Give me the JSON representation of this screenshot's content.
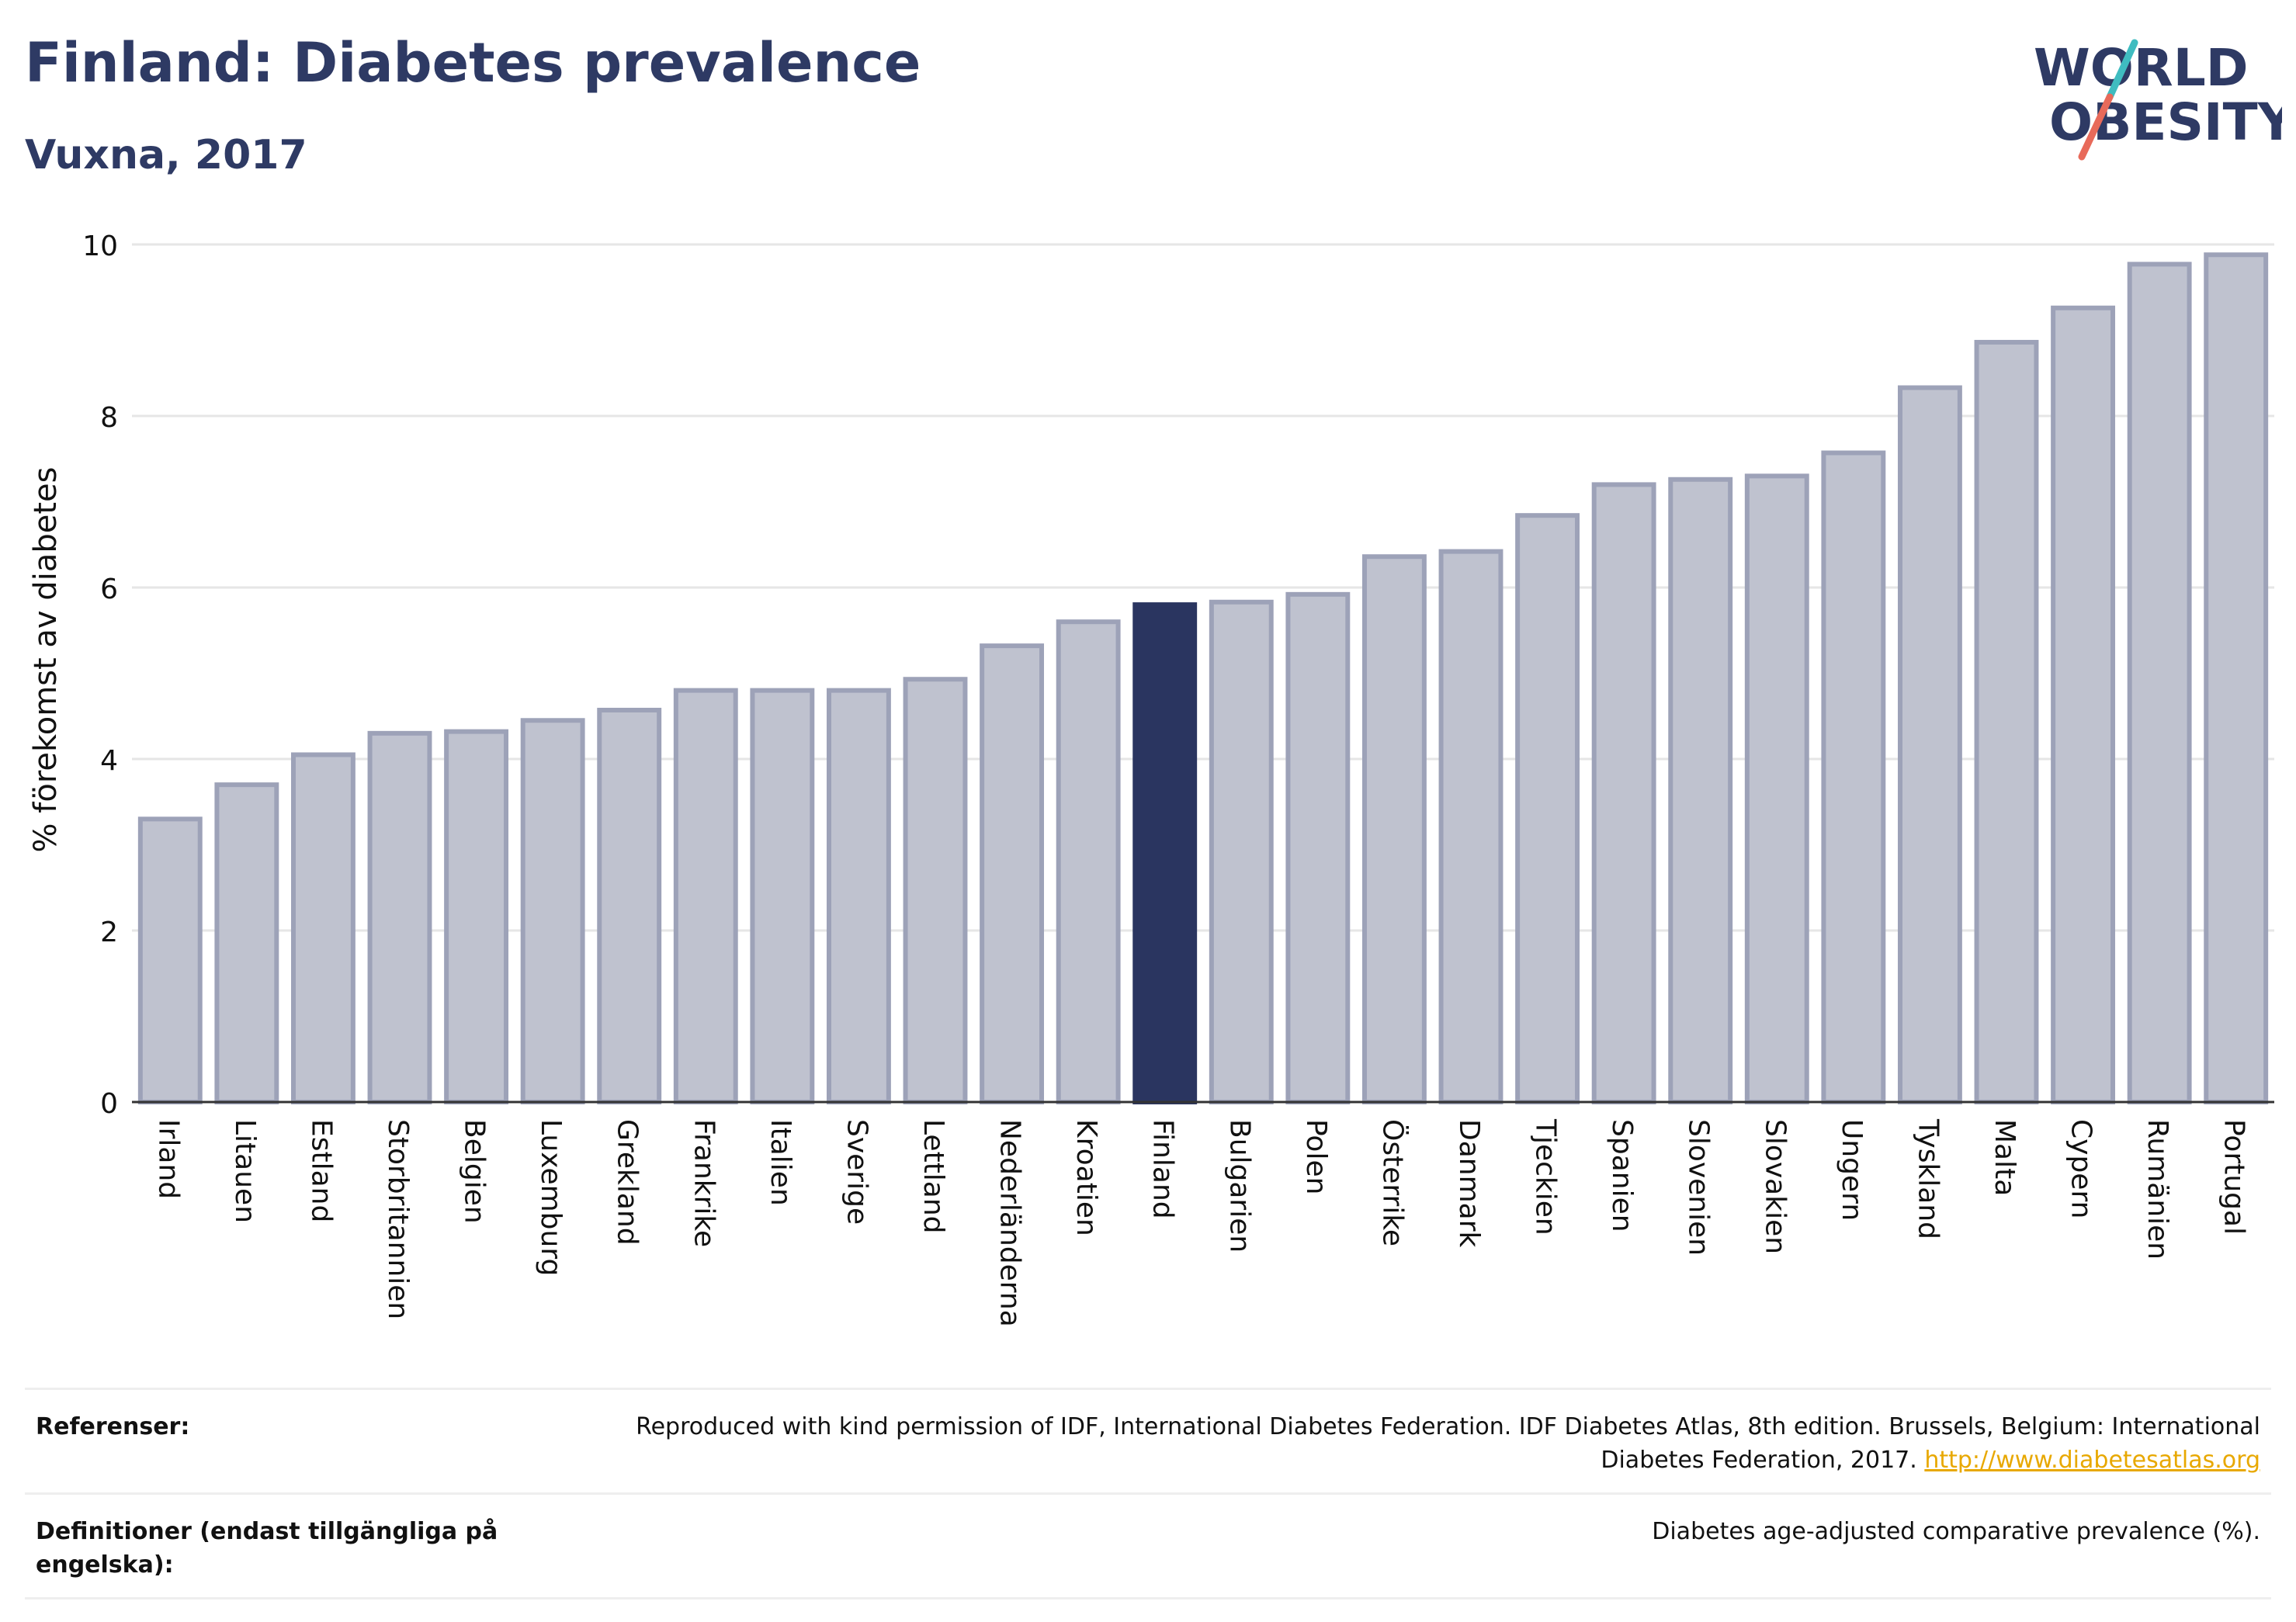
{
  "header": {
    "title": "Finland: Diabetes prevalence",
    "subtitle": "Vuxna, 2017"
  },
  "logo": {
    "line1": "WORLD",
    "line2": "OBESITY",
    "colors": {
      "text": "#2e3a64",
      "slash_top": "#3fbcc0",
      "slash_bottom": "#e86a5a"
    }
  },
  "chart_data": {
    "type": "bar",
    "title": "Finland: Diabetes prevalence",
    "subtitle": "Vuxna, 2017",
    "xlabel": "",
    "ylabel": "% förekomst av diabetes",
    "ylim": [
      0,
      10
    ],
    "yticks": [
      0,
      2,
      4,
      6,
      8,
      10
    ],
    "grid": true,
    "highlight": "Finland",
    "colors": {
      "bar": "#bfc2cf",
      "bar_border": "#9da2b8",
      "highlight": "#2a3560"
    },
    "categories": [
      "Irland",
      "Litauen",
      "Estland",
      "Storbritannien",
      "Belgien",
      "Luxemburg",
      "Grekland",
      "Frankrike",
      "Italien",
      "Sverige",
      "Lettland",
      "Nederländerna",
      "Kroatien",
      "Finland",
      "Bulgarien",
      "Polen",
      "Österrike",
      "Danmark",
      "Tjeckien",
      "Spanien",
      "Slovenien",
      "Slovakien",
      "Ungern",
      "Tyskland",
      "Malta",
      "Cypern",
      "Rumänien",
      "Portugal"
    ],
    "values": [
      3.3,
      3.7,
      4.05,
      4.3,
      4.32,
      4.45,
      4.57,
      4.8,
      4.8,
      4.8,
      4.93,
      5.32,
      5.6,
      5.8,
      5.83,
      5.92,
      6.36,
      6.42,
      6.84,
      7.2,
      7.26,
      7.3,
      7.57,
      8.33,
      8.86,
      9.26,
      9.77,
      9.88
    ]
  },
  "references": {
    "label": "Referenser:",
    "text": "Reproduced with kind permission of IDF, International Diabetes Federation. IDF Diabetes Atlas, 8th edition. Brussels, Belgium: International Diabetes Federation, 2017.",
    "link": "http://www.diabetesatlas.org"
  },
  "definitions": {
    "label": "Definitioner (endast tillgängliga på engelska):",
    "text": "Diabetes age-adjusted comparative prevalence (%)."
  }
}
